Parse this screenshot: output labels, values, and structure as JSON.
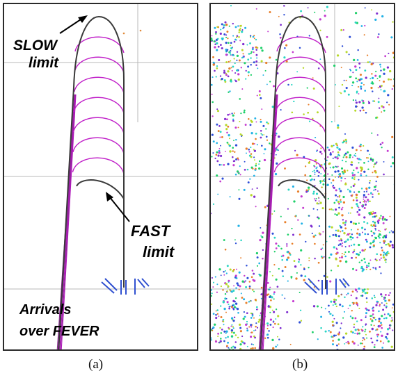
{
  "panel_a": {
    "annotations": {
      "slow_line1": "SLOW",
      "slow_line2": "limit",
      "fast_line1": "FAST",
      "fast_line2": "limit",
      "arrivals_line1": "Arrivals",
      "arrivals_line2": "over FEVER"
    },
    "caption": "(a)"
  },
  "panel_b": {
    "caption": "(b)"
  },
  "colors": {
    "boundary": "#3a3a3a",
    "arc": "#c020c8",
    "track": "#b418c0",
    "grid": "#b8b8b8",
    "runway": "#3050d0",
    "label": "#e08a3a",
    "traffic_dots": [
      "#1fd06a",
      "#22b2e6",
      "#2f4fd8",
      "#7f2fd0",
      "#c43ad0",
      "#e87f2a",
      "#b7d92a",
      "#2ad6c4"
    ]
  }
}
